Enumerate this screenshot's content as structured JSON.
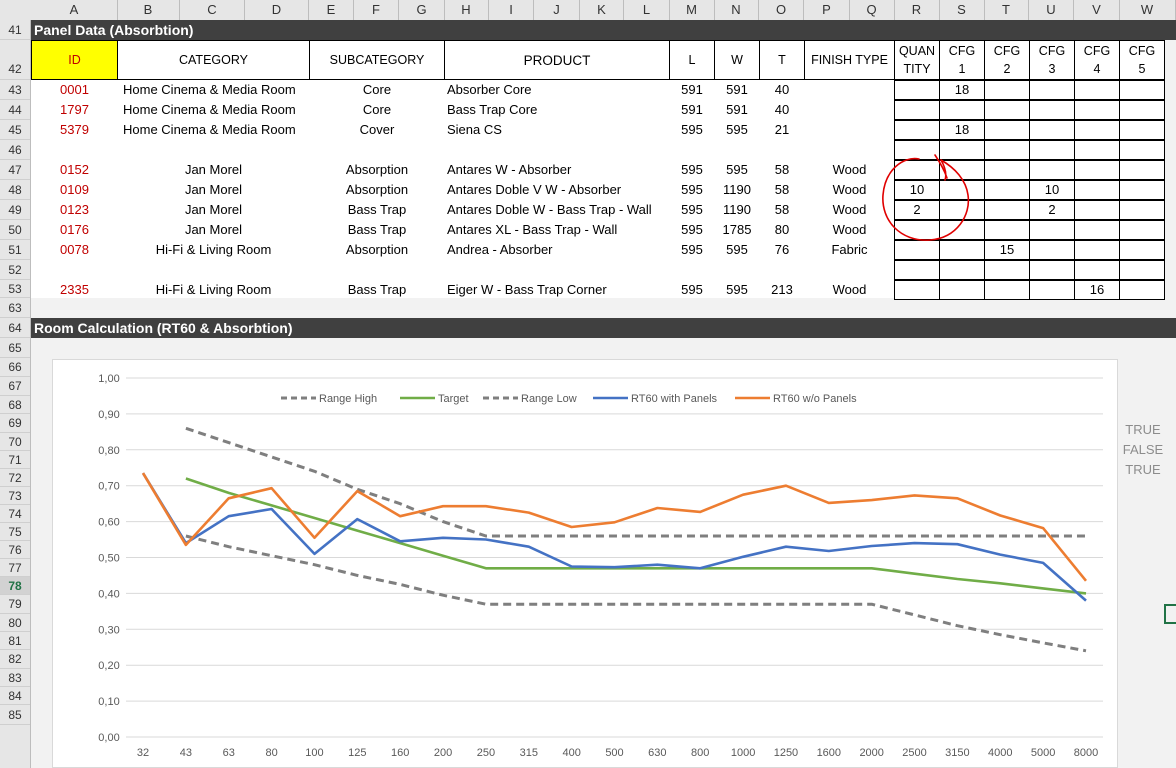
{
  "columns": [
    "A",
    "B",
    "C",
    "D",
    "E",
    "F",
    "G",
    "H",
    "I",
    "J",
    "K",
    "L",
    "M",
    "N",
    "O",
    "P",
    "Q",
    "R",
    "S",
    "T",
    "U",
    "V",
    "W"
  ],
  "rows": [
    "41",
    "42",
    "43",
    "44",
    "45",
    "46",
    "47",
    "48",
    "49",
    "50",
    "51",
    "52",
    "53",
    "63",
    "64",
    "65",
    "66",
    "67",
    "68",
    "69",
    "70",
    "71",
    "72",
    "73",
    "74",
    "75",
    "76",
    "77",
    "78",
    "79",
    "80",
    "81",
    "82",
    "83",
    "84",
    "85"
  ],
  "selected_row": "78",
  "panel_section_title": "Panel Data (Absorbtion)",
  "room_section_title": "Room Calculation (RT60 & Absorbtion)",
  "table_headers": {
    "id": "ID",
    "category": "CATEGORY",
    "subcategory": "SUBCATEGORY",
    "product": "PRODUCT",
    "l": "L",
    "w": "W",
    "t": "T",
    "finish": "FINISH TYPE",
    "quantity_1": "QUAN",
    "quantity_2": "TITY",
    "cfg": [
      "CFG",
      "CFG",
      "CFG",
      "CFG",
      "CFG"
    ],
    "cfg_num": [
      "1",
      "2",
      "3",
      "4",
      "5"
    ]
  },
  "panel_rows": [
    {
      "id": "0001",
      "category": "Home Cinema & Media Room",
      "subcategory": "Core",
      "product": "Absorber Core",
      "l": "591",
      "w": "591",
      "t": "40",
      "finish": "",
      "qty": "",
      "cfg": [
        "18",
        "",
        "",
        "",
        ""
      ]
    },
    {
      "id": "1797",
      "category": "Home Cinema & Media Room",
      "subcategory": "Core",
      "product": "Bass Trap Core",
      "l": "591",
      "w": "591",
      "t": "40",
      "finish": "",
      "qty": "",
      "cfg": [
        "",
        "",
        "",
        "",
        ""
      ]
    },
    {
      "id": "5379",
      "category": "Home Cinema & Media Room",
      "subcategory": "Cover",
      "product": "Siena CS",
      "l": "595",
      "w": "595",
      "t": "21",
      "finish": "",
      "qty": "",
      "cfg": [
        "18",
        "",
        "",
        "",
        ""
      ]
    },
    {
      "id": "",
      "category": "",
      "subcategory": "",
      "product": "",
      "l": "",
      "w": "",
      "t": "",
      "finish": "",
      "qty": "",
      "cfg": [
        "",
        "",
        "",
        "",
        ""
      ]
    },
    {
      "id": "0152",
      "category": "Jan Morel",
      "subcategory": "Absorption",
      "product": "Antares W - Absorber",
      "l": "595",
      "w": "595",
      "t": "58",
      "finish": "Wood",
      "qty": "",
      "cfg": [
        "",
        "",
        "",
        "",
        ""
      ]
    },
    {
      "id": "0109",
      "category": "Jan Morel",
      "subcategory": "Absorption",
      "product": "Antares Doble V W - Absorber",
      "l": "595",
      "w": "1190",
      "t": "58",
      "finish": "Wood",
      "qty": "10",
      "cfg": [
        "",
        "",
        "10",
        "",
        ""
      ]
    },
    {
      "id": "0123",
      "category": "Jan Morel",
      "subcategory": "Bass Trap",
      "product": "Antares Doble W - Bass Trap - Wall",
      "l": "595",
      "w": "1190",
      "t": "58",
      "finish": "Wood",
      "qty": "2",
      "cfg": [
        "",
        "",
        "2",
        "",
        ""
      ]
    },
    {
      "id": "0176",
      "category": "Jan Morel",
      "subcategory": "Bass Trap",
      "product": "Antares XL - Bass Trap - Wall",
      "l": "595",
      "w": "1785",
      "t": "80",
      "finish": "Wood",
      "qty": "",
      "cfg": [
        "",
        "",
        "",
        "",
        ""
      ]
    },
    {
      "id": "0078",
      "category": "Hi-Fi & Living Room",
      "subcategory": "Absorption",
      "product": "Andrea - Absorber",
      "l": "595",
      "w": "595",
      "t": "76",
      "finish": "Fabric",
      "qty": "",
      "cfg": [
        "",
        "15",
        "",
        "",
        ""
      ]
    },
    {
      "id": "",
      "category": "",
      "subcategory": "",
      "product": "",
      "l": "",
      "w": "",
      "t": "",
      "finish": "",
      "qty": "",
      "cfg": [
        "",
        "",
        "",
        "",
        ""
      ]
    },
    {
      "id": "2335",
      "category": "Hi-Fi & Living Room",
      "subcategory": "Bass Trap",
      "product": "Eiger W - Bass Trap Corner",
      "l": "595",
      "w": "595",
      "t": "213",
      "finish": "Wood",
      "qty": "",
      "cfg": [
        "",
        "",
        "",
        "16",
        ""
      ]
    }
  ],
  "side_flags": [
    "TRUE",
    "FALSE",
    "TRUE"
  ],
  "colors": {
    "range": "#7f7f7f",
    "target": "#70ad47",
    "with_panels": "#4472c4",
    "without_panels": "#ed7d31",
    "id_text": "#c00000",
    "id_header_bg": "#ffff00",
    "section_bar": "#404040",
    "annotation": "#e00000"
  },
  "chart_data": {
    "type": "line",
    "categories": [
      "32",
      "43",
      "63",
      "80",
      "100",
      "125",
      "160",
      "200",
      "250",
      "315",
      "400",
      "500",
      "630",
      "800",
      "1000",
      "1250",
      "1600",
      "2000",
      "2500",
      "3150",
      "4000",
      "5000",
      "8000"
    ],
    "ylim": [
      0,
      1
    ],
    "yticks": [
      "0,00",
      "0,10",
      "0,20",
      "0,30",
      "0,40",
      "0,50",
      "0,60",
      "0,70",
      "0,80",
      "0,90",
      "1,00"
    ],
    "grid": true,
    "legend_position": "top",
    "series": [
      {
        "name": "Range High",
        "style": "dashed",
        "color": "#7f7f7f",
        "values": [
          null,
          0.86,
          0.82,
          0.78,
          0.74,
          0.69,
          0.65,
          0.6,
          0.56,
          0.56,
          0.56,
          0.56,
          0.56,
          0.56,
          0.56,
          0.56,
          0.56,
          0.56,
          0.56,
          0.56,
          0.56,
          0.56,
          0.56
        ]
      },
      {
        "name": "Target",
        "style": "solid",
        "color": "#70ad47",
        "values": [
          null,
          0.72,
          0.68,
          0.645,
          0.61,
          0.575,
          0.54,
          0.505,
          0.47,
          0.47,
          0.47,
          0.47,
          0.47,
          0.47,
          0.47,
          0.47,
          0.47,
          0.47,
          0.455,
          0.44,
          0.428,
          0.414,
          0.4
        ]
      },
      {
        "name": "Range Low",
        "style": "dashed",
        "color": "#7f7f7f",
        "values": [
          null,
          0.56,
          0.53,
          0.505,
          0.48,
          0.45,
          0.425,
          0.395,
          0.37,
          0.37,
          0.37,
          0.37,
          0.37,
          0.37,
          0.37,
          0.37,
          0.37,
          0.37,
          0.34,
          0.31,
          0.285,
          0.262,
          0.24
        ]
      },
      {
        "name": "RT60 with Panels",
        "style": "solid",
        "color": "#4472c4",
        "values": [
          0.735,
          0.54,
          0.615,
          0.635,
          0.51,
          0.607,
          0.545,
          0.555,
          0.55,
          0.53,
          0.475,
          0.473,
          0.48,
          0.47,
          0.502,
          0.53,
          0.518,
          0.532,
          0.54,
          0.537,
          0.508,
          0.485,
          0.38
        ]
      },
      {
        "name": "RT60 w/o Panels",
        "style": "solid",
        "color": "#ed7d31",
        "values": [
          0.735,
          0.535,
          0.665,
          0.693,
          0.555,
          0.685,
          0.615,
          0.643,
          0.643,
          0.625,
          0.585,
          0.598,
          0.638,
          0.627,
          0.675,
          0.7,
          0.652,
          0.66,
          0.673,
          0.665,
          0.617,
          0.582,
          0.435
        ]
      }
    ]
  }
}
